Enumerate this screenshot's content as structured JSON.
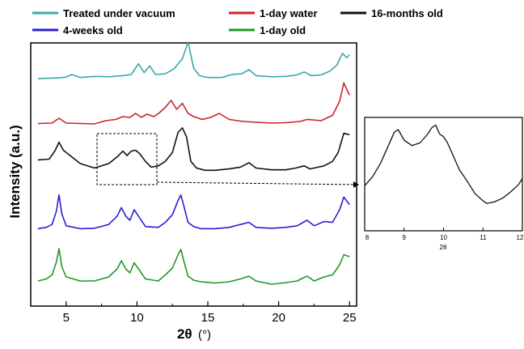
{
  "chart_data": [
    {
      "type": "line",
      "title": "",
      "xlabel": "2θ (°)",
      "xlabel_main": "2θ",
      "xlabel_unit": "(°)",
      "ylabel": "Intensity (a.u.)",
      "xlim": [
        2.5,
        25.5
      ],
      "xticks": [
        5,
        10,
        15,
        20,
        25
      ],
      "xtick_labels": [
        "5",
        "10",
        "15",
        "20",
        "25"
      ],
      "y_scale": "arbitrary, stacked offsets",
      "grid": false,
      "legend_position": "top",
      "series": [
        {
          "name": "Treated under vacuum",
          "color": "#3aa9a6",
          "x": [
            3.0,
            4.5,
            5.0,
            5.4,
            6.0,
            7.0,
            8.0,
            9.0,
            9.6,
            10.1,
            10.5,
            10.9,
            11.3,
            12.0,
            12.6,
            13.2,
            13.6,
            14.0,
            14.4,
            15.0,
            16.0,
            16.7,
            17.4,
            17.9,
            18.4,
            19.5,
            20.5,
            21.3,
            21.8,
            22.3,
            23.0,
            23.6,
            24.1,
            24.5,
            24.8,
            25.0
          ],
          "y": [
            0.02,
            0.04,
            0.06,
            0.13,
            0.05,
            0.08,
            0.07,
            0.1,
            0.13,
            0.42,
            0.18,
            0.36,
            0.13,
            0.15,
            0.28,
            0.55,
            1.0,
            0.3,
            0.1,
            0.05,
            0.05,
            0.13,
            0.15,
            0.26,
            0.1,
            0.07,
            0.08,
            0.12,
            0.2,
            0.1,
            0.12,
            0.22,
            0.38,
            0.7,
            0.58,
            0.66
          ]
        },
        {
          "name": "1-day water",
          "color": "#cc2229",
          "x": [
            3.0,
            4.0,
            4.5,
            5.0,
            6.0,
            7.0,
            7.8,
            8.5,
            9.0,
            9.5,
            9.9,
            10.3,
            10.7,
            11.2,
            11.6,
            12.0,
            12.4,
            12.8,
            13.2,
            13.6,
            14.0,
            14.6,
            15.2,
            15.8,
            16.5,
            17.5,
            18.5,
            19.5,
            20.5,
            21.5,
            22.0,
            23.0,
            23.8,
            24.3,
            24.6,
            25.0
          ],
          "y": [
            0.05,
            0.06,
            0.18,
            0.06,
            0.05,
            0.04,
            0.12,
            0.15,
            0.22,
            0.2,
            0.3,
            0.2,
            0.28,
            0.22,
            0.32,
            0.45,
            0.62,
            0.4,
            0.55,
            0.3,
            0.22,
            0.15,
            0.2,
            0.3,
            0.15,
            0.1,
            0.08,
            0.06,
            0.07,
            0.1,
            0.15,
            0.12,
            0.25,
            0.6,
            1.05,
            0.75
          ]
        },
        {
          "name": "16-months old",
          "color": "#111111",
          "x": [
            3.0,
            3.8,
            4.2,
            4.5,
            4.8,
            5.2,
            6.0,
            7.0,
            8.0,
            8.6,
            9.0,
            9.3,
            9.6,
            9.9,
            10.2,
            10.6,
            11.0,
            11.5,
            12.0,
            12.5,
            12.9,
            13.2,
            13.5,
            13.8,
            14.2,
            14.8,
            15.5,
            16.5,
            17.3,
            17.9,
            18.4,
            19.5,
            20.5,
            21.2,
            21.8,
            22.2,
            22.8,
            23.2,
            23.8,
            24.2,
            24.6,
            25.0
          ],
          "y": [
            0.28,
            0.3,
            0.48,
            0.68,
            0.5,
            0.4,
            0.2,
            0.1,
            0.2,
            0.35,
            0.48,
            0.38,
            0.48,
            0.5,
            0.42,
            0.25,
            0.12,
            0.15,
            0.25,
            0.45,
            0.9,
            1.0,
            0.8,
            0.25,
            0.1,
            0.05,
            0.05,
            0.08,
            0.12,
            0.22,
            0.1,
            0.06,
            0.06,
            0.1,
            0.15,
            0.08,
            0.12,
            0.15,
            0.25,
            0.45,
            0.88,
            0.85
          ]
        },
        {
          "name": "4-weeks old",
          "color": "#2a1fd6",
          "x": [
            3.0,
            3.6,
            4.0,
            4.3,
            4.5,
            4.7,
            5.0,
            6.0,
            7.0,
            8.0,
            8.6,
            8.9,
            9.2,
            9.5,
            9.8,
            10.1,
            10.6,
            11.5,
            12.0,
            12.5,
            12.9,
            13.1,
            13.3,
            13.6,
            14.0,
            14.5,
            15.5,
            16.5,
            17.3,
            17.9,
            18.4,
            19.5,
            20.5,
            21.3,
            22.0,
            22.5,
            23.2,
            23.8,
            24.3,
            24.6,
            25.0
          ],
          "y": [
            0.05,
            0.08,
            0.15,
            0.45,
            0.85,
            0.4,
            0.12,
            0.05,
            0.06,
            0.15,
            0.35,
            0.55,
            0.35,
            0.25,
            0.5,
            0.35,
            0.1,
            0.08,
            0.2,
            0.38,
            0.72,
            0.85,
            0.6,
            0.2,
            0.1,
            0.05,
            0.05,
            0.08,
            0.15,
            0.2,
            0.08,
            0.06,
            0.08,
            0.12,
            0.25,
            0.12,
            0.22,
            0.2,
            0.5,
            0.8,
            0.62
          ]
        },
        {
          "name": "1-day old",
          "color": "#1d9a24",
          "x": [
            3.0,
            3.6,
            4.0,
            4.3,
            4.5,
            4.7,
            5.0,
            6.0,
            7.0,
            8.0,
            8.6,
            8.9,
            9.2,
            9.5,
            9.8,
            10.1,
            10.6,
            11.5,
            12.0,
            12.5,
            12.9,
            13.1,
            13.3,
            13.6,
            14.0,
            14.5,
            15.5,
            16.5,
            17.3,
            17.9,
            18.4,
            19.5,
            20.5,
            21.3,
            22.0,
            22.5,
            23.2,
            23.8,
            24.3,
            24.6,
            25.0
          ],
          "y": [
            0.1,
            0.15,
            0.25,
            0.55,
            0.9,
            0.45,
            0.2,
            0.1,
            0.1,
            0.2,
            0.4,
            0.6,
            0.4,
            0.3,
            0.55,
            0.4,
            0.15,
            0.1,
            0.25,
            0.42,
            0.75,
            0.88,
            0.6,
            0.22,
            0.12,
            0.08,
            0.05,
            0.08,
            0.15,
            0.22,
            0.1,
            0.02,
            0.06,
            0.1,
            0.22,
            0.1,
            0.2,
            0.25,
            0.5,
            0.75,
            0.7
          ]
        }
      ],
      "annotation": "dashed box 7.2–11.4 with arrow to inset"
    },
    {
      "type": "line",
      "title": "",
      "xlabel": "2θ",
      "ylabel": "",
      "xlim": [
        8,
        12
      ],
      "xticks": [
        8,
        9,
        10,
        11,
        12
      ],
      "xtick_labels": [
        "8",
        "9",
        "10",
        "11",
        "12"
      ],
      "grid": false,
      "series": [
        {
          "color": "#111111",
          "x": [
            8.0,
            8.2,
            8.4,
            8.6,
            8.75,
            8.85,
            9.0,
            9.2,
            9.4,
            9.6,
            9.7,
            9.8,
            9.9,
            10.0,
            10.1,
            10.2,
            10.4,
            10.6,
            10.8,
            11.0,
            11.1,
            11.3,
            11.5,
            11.7,
            11.9,
            12.0
          ],
          "y": [
            0.37,
            0.47,
            0.62,
            0.82,
            0.97,
            1.0,
            0.88,
            0.82,
            0.85,
            0.95,
            1.02,
            1.05,
            0.95,
            0.92,
            0.85,
            0.75,
            0.55,
            0.42,
            0.28,
            0.2,
            0.17,
            0.19,
            0.23,
            0.3,
            0.38,
            0.45
          ]
        }
      ]
    }
  ]
}
